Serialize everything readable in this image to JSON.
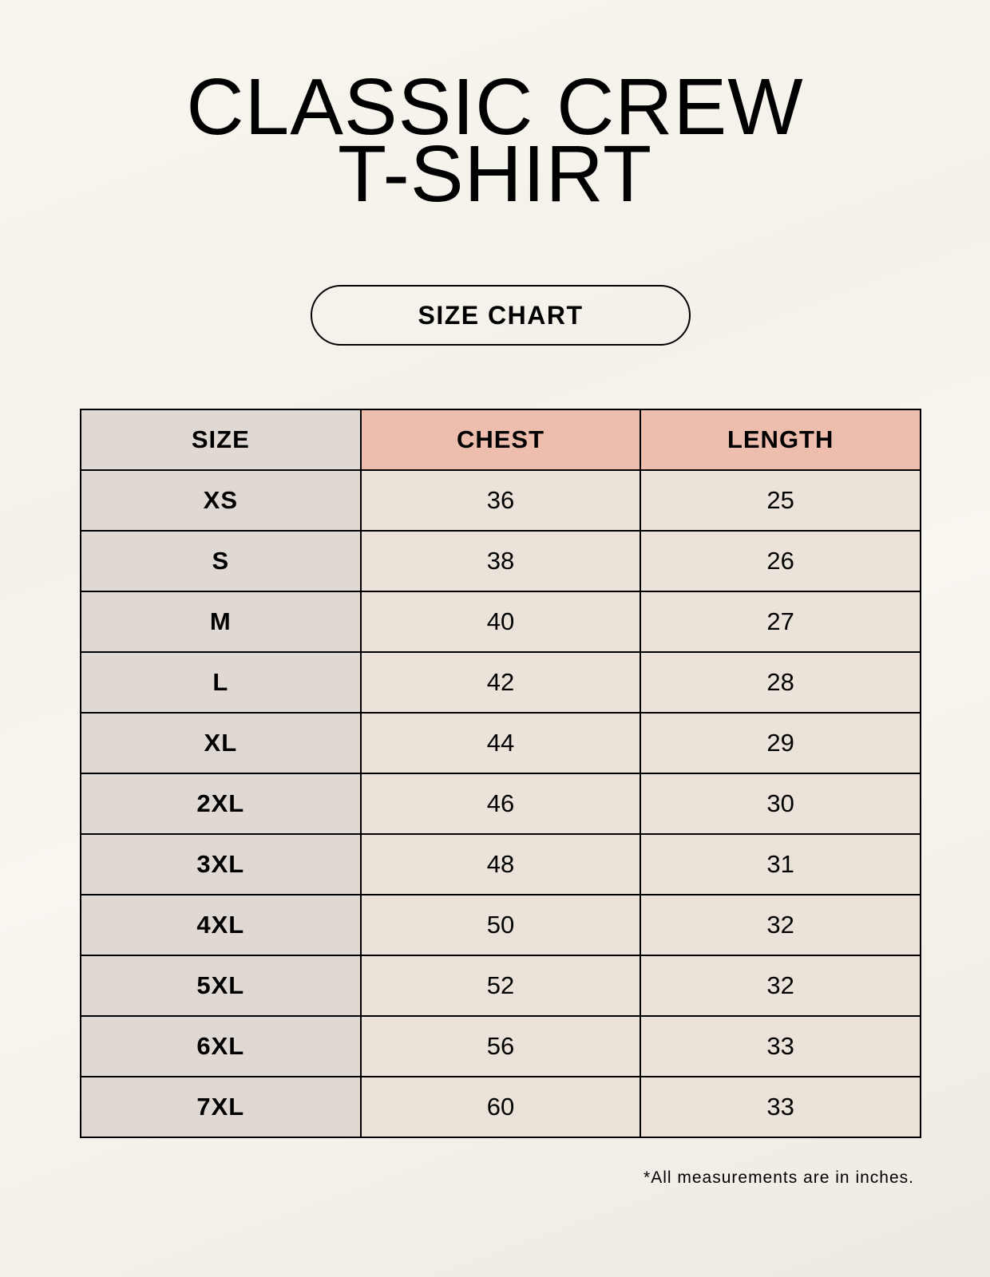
{
  "title_lines": [
    "CLASSIC CREW",
    "T-SHIRT"
  ],
  "badge": "SIZE CHART",
  "table": {
    "headers": [
      "SIZE",
      "CHEST",
      "LENGTH"
    ],
    "rows": [
      [
        "XS",
        "36",
        "25"
      ],
      [
        "S",
        "38",
        "26"
      ],
      [
        "M",
        "40",
        "27"
      ],
      [
        "L",
        "42",
        "28"
      ],
      [
        "XL",
        "44",
        "29"
      ],
      [
        "2XL",
        "46",
        "30"
      ],
      [
        "3XL",
        "48",
        "31"
      ],
      [
        "4XL",
        "50",
        "32"
      ],
      [
        "5XL",
        "52",
        "32"
      ],
      [
        "6XL",
        "56",
        "33"
      ],
      [
        "7XL",
        "60",
        "33"
      ]
    ]
  },
  "footnote": "*All measurements are in inches.",
  "colors": {
    "size_column": "#e0d9d3",
    "header_accent": "#edbdae",
    "value_cells": "#ebe3d9"
  }
}
